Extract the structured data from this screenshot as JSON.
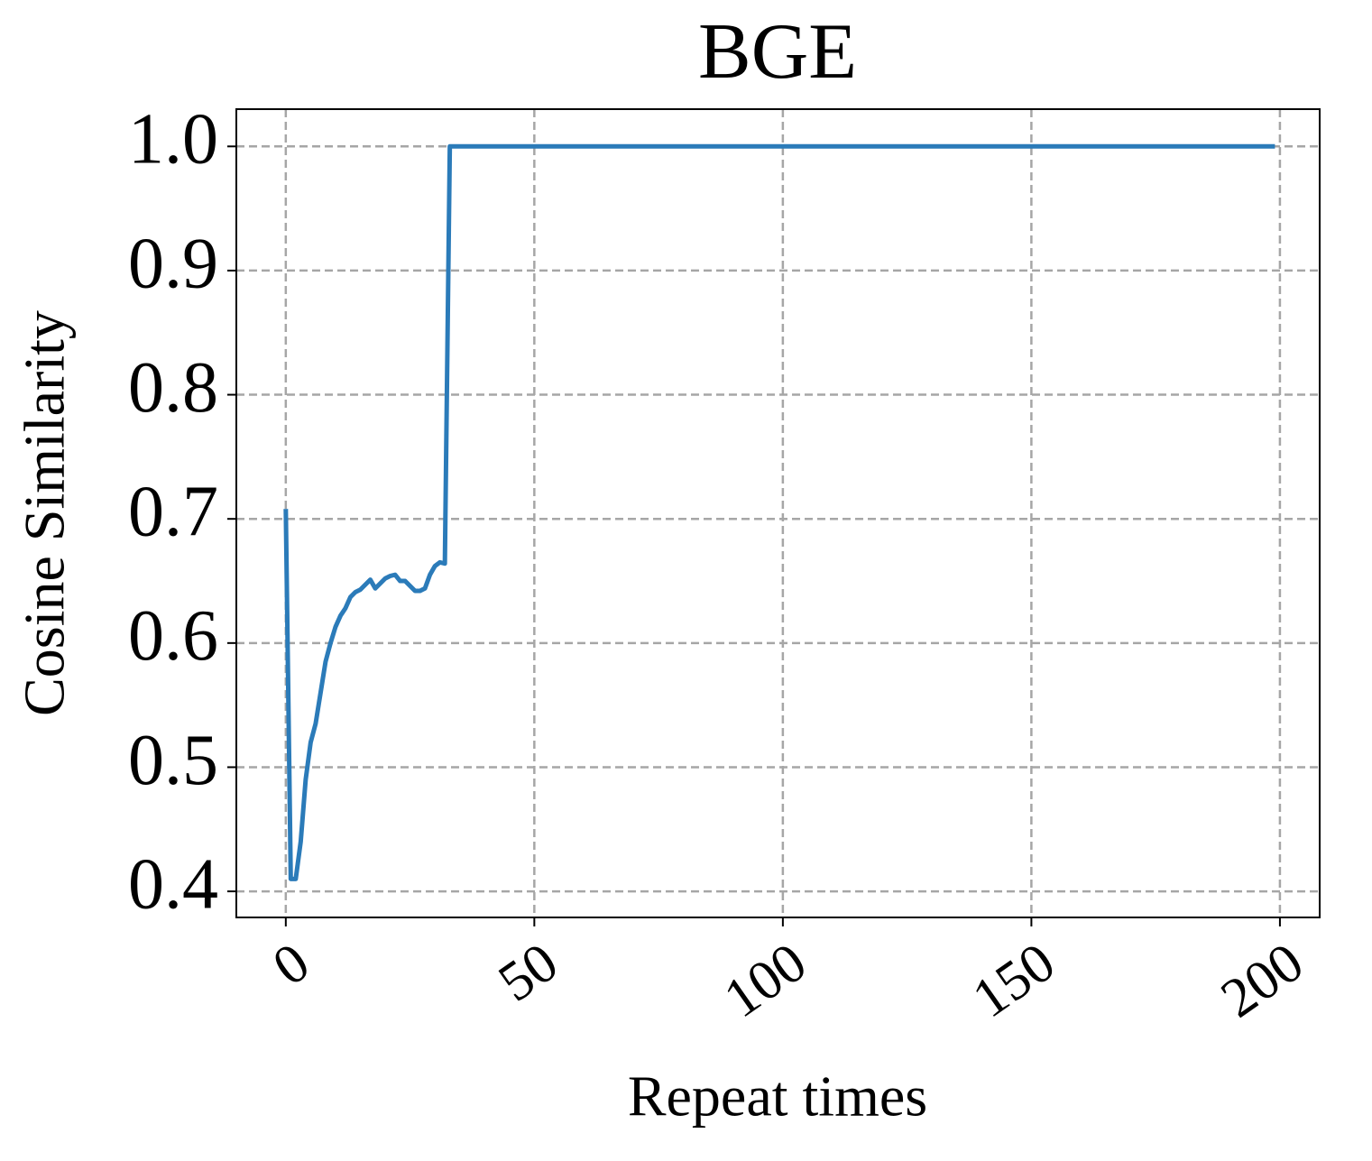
{
  "chart_data": {
    "type": "line",
    "title": "BGE",
    "xlabel": "Repeat times",
    "ylabel": "Cosine Similarity",
    "x": [
      0,
      1,
      2,
      3,
      4,
      5,
      6,
      7,
      8,
      9,
      10,
      11,
      12,
      13,
      14,
      15,
      16,
      17,
      18,
      19,
      20,
      21,
      22,
      23,
      24,
      25,
      26,
      27,
      28,
      29,
      30,
      31,
      32,
      33,
      199
    ],
    "values": [
      0.708,
      0.41,
      0.41,
      0.44,
      0.49,
      0.52,
      0.535,
      0.56,
      0.585,
      0.6,
      0.613,
      0.622,
      0.628,
      0.637,
      0.641,
      0.643,
      0.647,
      0.651,
      0.644,
      0.648,
      0.652,
      0.654,
      0.655,
      0.65,
      0.65,
      0.646,
      0.642,
      0.642,
      0.644,
      0.655,
      0.662,
      0.665,
      0.664,
      1.0,
      1.0
    ],
    "color": "#2b7bb9",
    "xlim": [
      -9.95,
      208
    ],
    "ylim": [
      0.379,
      1.03
    ],
    "xticks": [
      0,
      50,
      100,
      150,
      200
    ],
    "yticks": [
      {
        "value": 0.4,
        "label": "0.4"
      },
      {
        "value": 0.5,
        "label": "0.5"
      },
      {
        "value": 0.6,
        "label": "0.6"
      },
      {
        "value": 0.7,
        "label": "0.7"
      },
      {
        "value": 0.8,
        "label": "0.8"
      },
      {
        "value": 0.9,
        "label": "0.9"
      },
      {
        "value": 1.0,
        "label": "1.0"
      }
    ],
    "grid": true
  }
}
